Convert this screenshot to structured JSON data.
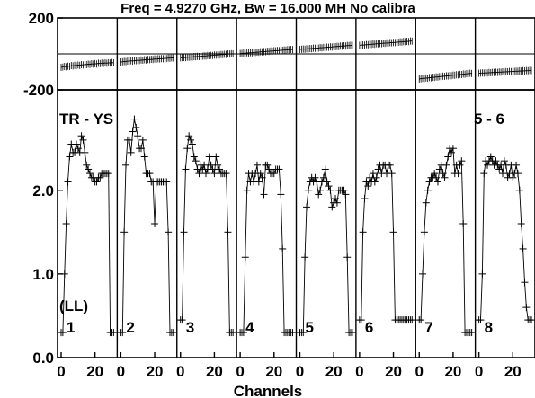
{
  "title": "Freq = 4.9270 GHz, Bw = 16.000 MH   No calibra",
  "chart_data": {
    "type": "line",
    "xlabel": "Channels",
    "baseline_label": "TR - YS",
    "pol_label": "(LL)",
    "pair_label": "5 - 6",
    "phase_axis": {
      "ylim": [
        -200,
        200
      ],
      "ticks": [
        {
          "v": 200,
          "label": "200"
        },
        {
          "v": -200,
          "label": "-200"
        }
      ]
    },
    "amp_axis": {
      "ylim": [
        0,
        3.2
      ],
      "ticks": [
        {
          "v": 0,
          "label": "0.0"
        },
        {
          "v": 1,
          "label": "1.0"
        },
        {
          "v": 2,
          "label": "2.0"
        }
      ]
    },
    "x_ticks": [
      {
        "v": 0,
        "label": "0"
      },
      {
        "v": 20,
        "label": "20"
      }
    ],
    "channels_per_panel": 32,
    "panels": [
      {
        "label": "1",
        "amp": [
          0.3,
          0.3,
          1.0,
          1.6,
          2.1,
          2.4,
          2.55,
          2.45,
          2.45,
          2.55,
          2.5,
          2.45,
          2.65,
          2.6,
          2.45,
          2.3,
          2.25,
          2.2,
          2.15,
          2.15,
          2.1,
          2.1,
          2.15,
          2.15,
          2.2,
          2.2,
          2.2,
          2.2,
          2.2,
          0.3,
          0.3,
          0.3
        ],
        "phase": [
          -75,
          -73,
          -70,
          -72,
          -68,
          -70,
          -65,
          -67,
          -64,
          -66,
          -62,
          -64,
          -60,
          -62,
          -58,
          -60,
          -57,
          -59,
          -55,
          -57,
          -54,
          -56,
          -52,
          -54,
          -51,
          -53,
          -50,
          -52,
          -49,
          -51,
          -48,
          -50
        ]
      },
      {
        "label": "2",
        "amp": [
          0.3,
          0.3,
          1.5,
          2.3,
          2.6,
          2.6,
          2.45,
          2.7,
          2.85,
          2.75,
          2.65,
          2.5,
          2.5,
          2.6,
          2.4,
          2.2,
          2.2,
          2.2,
          2.1,
          2.1,
          1.6,
          2.1,
          2.1,
          2.1,
          2.1,
          2.1,
          2.1,
          2.1,
          1.5,
          0.3,
          0.3,
          0.3
        ],
        "phase": [
          -45,
          -44,
          -42,
          -43,
          -40,
          -41,
          -38,
          -40,
          -37,
          -38,
          -35,
          -37,
          -34,
          -35,
          -32,
          -34,
          -31,
          -32,
          -30,
          -31,
          -28,
          -30,
          -27,
          -28,
          -26,
          -27,
          -24,
          -26,
          -23,
          -24,
          -22,
          -23
        ]
      },
      {
        "label": "3",
        "amp": [
          0.45,
          0.45,
          1.5,
          2.25,
          2.5,
          2.65,
          2.6,
          2.55,
          2.4,
          2.35,
          2.25,
          2.2,
          2.3,
          2.25,
          2.3,
          2.2,
          2.25,
          2.4,
          2.3,
          2.25,
          2.2,
          2.4,
          2.3,
          2.25,
          2.2,
          2.2,
          2.2,
          2.2,
          1.5,
          0.3,
          0.3,
          0.3
        ],
        "phase": [
          -22,
          -21,
          -20,
          -21,
          -18,
          -19,
          -17,
          -18,
          -15,
          -16,
          -14,
          -15,
          -12,
          -13,
          -11,
          -12,
          -9,
          -10,
          -8,
          -9,
          -6,
          -7,
          -5,
          -6,
          -3,
          -4,
          -2,
          -3,
          0,
          -1,
          1,
          0
        ]
      },
      {
        "label": "4",
        "amp": [
          0.3,
          0.3,
          0.3,
          1.2,
          2.0,
          2.2,
          2.1,
          2.2,
          2.1,
          2.2,
          2.3,
          2.1,
          2.2,
          2.15,
          1.95,
          2.3,
          2.3,
          2.25,
          2.2,
          2.2,
          2.2,
          2.25,
          2.25,
          2.25,
          1.95,
          1.3,
          0.3,
          0.3,
          0.3,
          0.3,
          0.3,
          0.3
        ],
        "phase": [
          2,
          3,
          4,
          3,
          6,
          5,
          7,
          6,
          9,
          8,
          10,
          9,
          12,
          11,
          13,
          12,
          15,
          14,
          16,
          15,
          18,
          17,
          19,
          18,
          21,
          20,
          22,
          21,
          24,
          23,
          25,
          24
        ]
      },
      {
        "label": "5",
        "amp": [
          0.3,
          0.3,
          0.3,
          1.2,
          1.8,
          2.0,
          2.1,
          2.15,
          2.1,
          2.15,
          2.1,
          1.95,
          2.0,
          2.1,
          2.15,
          2.25,
          2.1,
          2.05,
          2.0,
          1.8,
          1.85,
          1.9,
          1.85,
          2.0,
          2.0,
          2.0,
          2.0,
          1.95,
          1.2,
          0.3,
          0.3,
          0.3
        ],
        "phase": [
          25,
          26,
          27,
          26,
          29,
          28,
          30,
          29,
          32,
          31,
          33,
          32,
          35,
          34,
          36,
          35,
          38,
          37,
          39,
          38,
          41,
          40,
          42,
          41,
          44,
          43,
          45,
          44,
          47,
          46,
          48,
          47
        ]
      },
      {
        "label": "6",
        "amp": [
          0.45,
          0.45,
          1.5,
          1.9,
          2.1,
          2.05,
          2.15,
          2.1,
          2.2,
          2.1,
          2.15,
          2.25,
          2.3,
          2.2,
          2.3,
          2.3,
          2.2,
          2.3,
          2.3,
          2.2,
          1.5,
          0.45,
          0.45,
          0.45,
          0.45,
          0.45,
          0.45,
          0.45,
          0.45,
          0.45,
          0.45,
          0.45
        ],
        "phase": [
          48,
          49,
          50,
          49,
          52,
          51,
          54,
          53,
          55,
          54,
          57,
          56,
          58,
          57,
          60,
          59,
          61,
          60,
          63,
          62,
          64,
          63,
          66,
          65,
          67,
          66,
          69,
          68,
          70,
          69,
          72,
          71
        ]
      },
      {
        "label": "7",
        "amp": [
          0.45,
          0.45,
          1.0,
          1.5,
          1.85,
          2.0,
          2.1,
          2.15,
          2.15,
          2.2,
          2.15,
          2.1,
          2.25,
          2.3,
          2.2,
          2.15,
          2.3,
          2.4,
          2.5,
          2.45,
          2.5,
          2.2,
          2.3,
          2.2,
          2.3,
          2.35,
          1.6,
          0.3,
          0.3,
          0.3,
          0.3,
          0.3
        ],
        "phase": [
          -140,
          -138,
          -136,
          -137,
          -134,
          -135,
          -132,
          -133,
          -130,
          -131,
          -128,
          -129,
          -126,
          -127,
          -124,
          -125,
          -122,
          -123,
          -120,
          -121,
          -118,
          -119,
          -116,
          -117,
          -114,
          -115,
          -112,
          -113,
          -110,
          -111,
          -108,
          -109
        ]
      },
      {
        "label": "8",
        "amp": [
          0.45,
          0.45,
          1.0,
          2.2,
          2.35,
          2.3,
          2.35,
          2.4,
          2.35,
          2.3,
          2.35,
          2.3,
          2.25,
          2.3,
          2.2,
          2.35,
          2.3,
          2.15,
          2.2,
          2.3,
          2.15,
          2.2,
          2.3,
          2.2,
          2.0,
          1.6,
          1.3,
          0.9,
          0.6,
          0.45,
          0.45,
          0.45
        ],
        "phase": [
          -108,
          -107,
          -106,
          -107,
          -105,
          -106,
          -104,
          -105,
          -103,
          -104,
          -102,
          -103,
          -101,
          -102,
          -100,
          -101,
          -99,
          -100,
          -98,
          -99,
          -97,
          -98,
          -96,
          -97,
          -95,
          -96,
          -94,
          -95,
          -93,
          -94,
          -92,
          -93
        ]
      }
    ]
  }
}
